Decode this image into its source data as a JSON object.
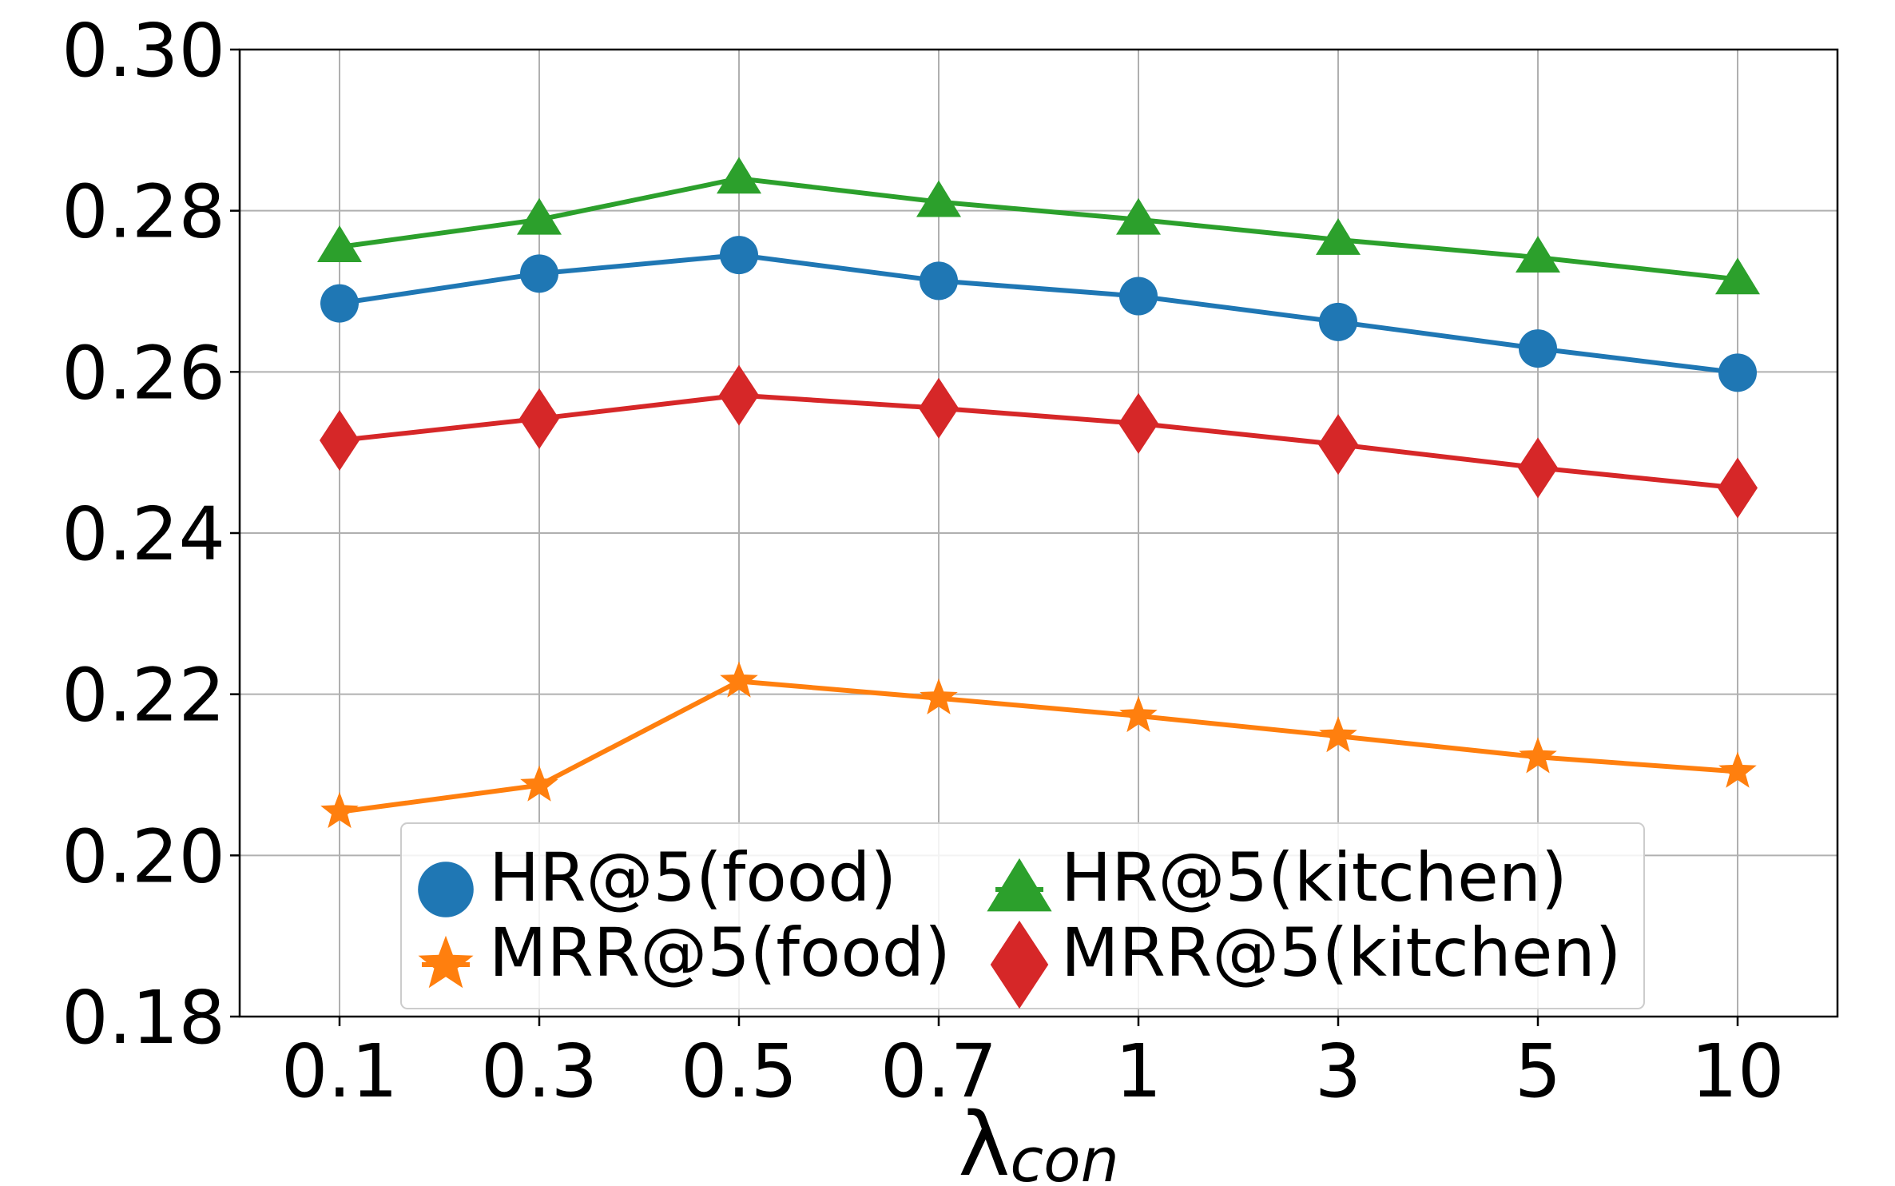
{
  "chart_data": {
    "type": "line",
    "title": "",
    "categories": [
      "0.1",
      "0.3",
      "0.5",
      "0.7",
      "1",
      "3",
      "5",
      "10"
    ],
    "xlabel": {
      "main": "λ",
      "subscript": "con"
    },
    "ylabel": "",
    "ylim": [
      0.18,
      0.3
    ],
    "yticks": [
      "0.18",
      "0.20",
      "0.22",
      "0.24",
      "0.26",
      "0.28",
      "0.30"
    ],
    "grid": true,
    "legend_position": "lower-center",
    "series": [
      {
        "name": "HR@5(food)",
        "marker": "circle",
        "color": "#1f77b4",
        "values": [
          0.2685,
          0.2722,
          0.2745,
          0.2713,
          0.2694,
          0.2662,
          0.2629,
          0.2599
        ]
      },
      {
        "name": "MRR@5(food)",
        "marker": "star",
        "color": "#ff7f0e",
        "values": [
          0.2054,
          0.2087,
          0.2216,
          0.2195,
          0.2173,
          0.2148,
          0.2122,
          0.2104
        ]
      },
      {
        "name": "HR@5(kitchen)",
        "marker": "triangle",
        "color": "#2ca02c",
        "values": [
          0.2755,
          0.2789,
          0.284,
          0.2811,
          0.2789,
          0.2764,
          0.2742,
          0.2715
        ]
      },
      {
        "name": "MRR@5(kitchen)",
        "marker": "diamond",
        "color": "#d62728",
        "values": [
          0.2515,
          0.2542,
          0.2571,
          0.2555,
          0.2536,
          0.251,
          0.2481,
          0.2456
        ]
      }
    ]
  }
}
